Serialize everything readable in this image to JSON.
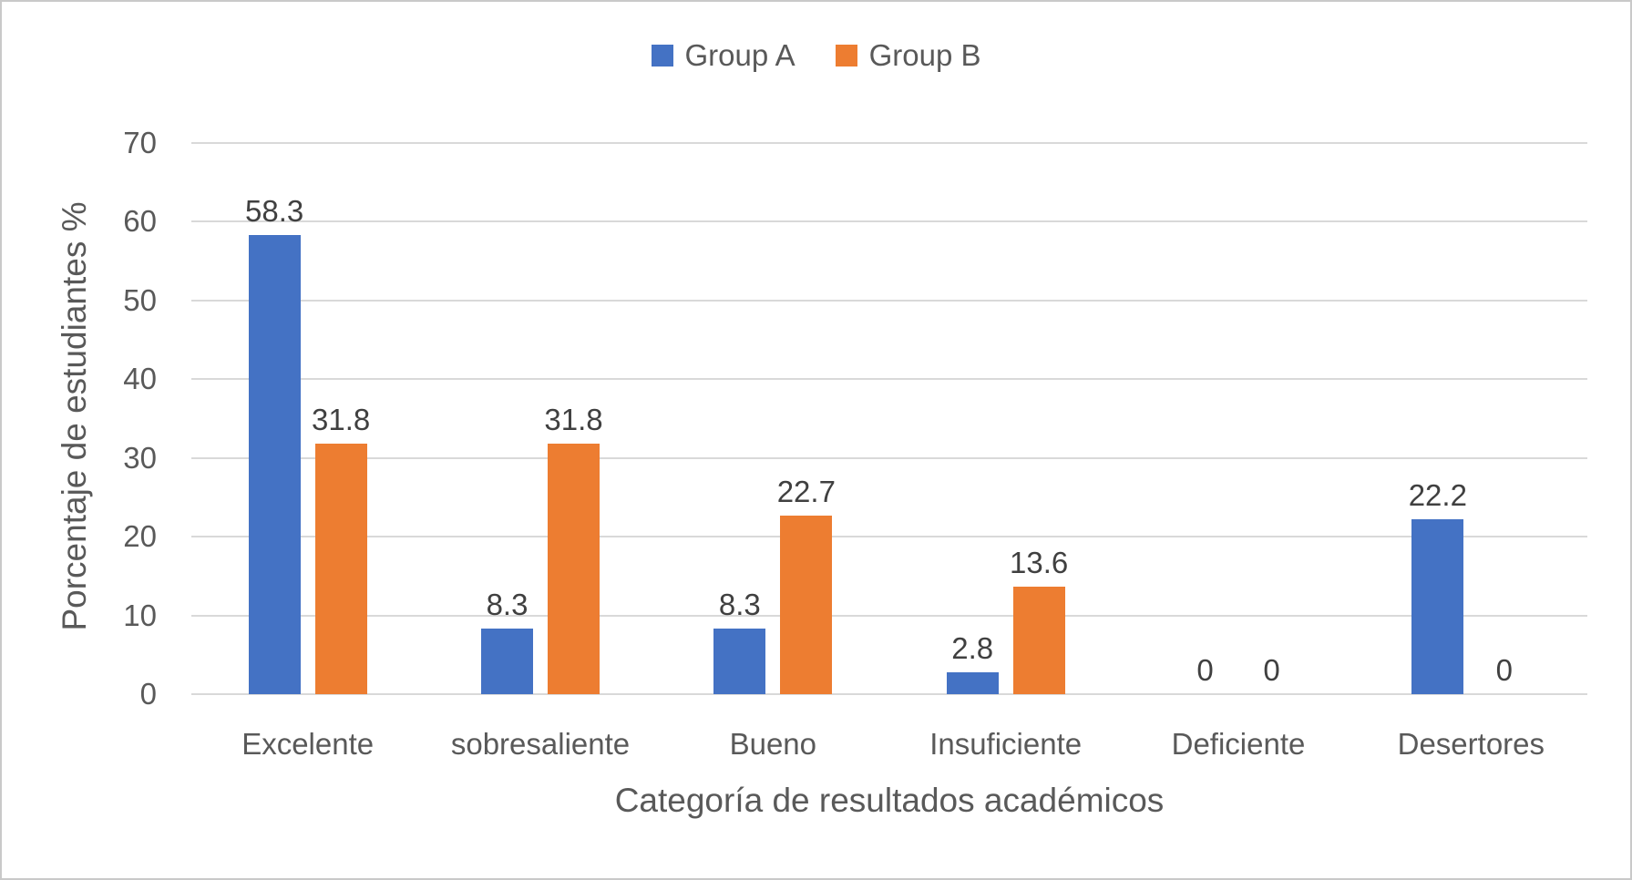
{
  "chart_data": {
    "type": "bar",
    "title": "",
    "categories": [
      "Excelente",
      "sobresaliente",
      "Bueno",
      "Insuficiente",
      "Deficiente",
      "Desertores"
    ],
    "series": [
      {
        "name": "Group A",
        "color": "#4472C4",
        "values": [
          58.3,
          8.3,
          8.3,
          2.8,
          0,
          22.2
        ]
      },
      {
        "name": "Group B",
        "color": "#ED7D31",
        "values": [
          31.8,
          31.8,
          22.7,
          13.6,
          0,
          0
        ]
      }
    ],
    "xlabel": "Categoría de resultados académicos",
    "ylabel": "Porcentaje de estudiantes %",
    "ylim": [
      0,
      70
    ],
    "yticks": [
      0,
      10,
      20,
      30,
      40,
      50,
      60,
      70
    ],
    "grid": true,
    "legend_position": "top",
    "data_labels": true
  },
  "colors": {
    "gridline": "#D9D9D9",
    "tick_text": "#595959",
    "data_label_text": "#404040",
    "frame_border": "#C9C9C9",
    "background": "#FFFFFF"
  }
}
